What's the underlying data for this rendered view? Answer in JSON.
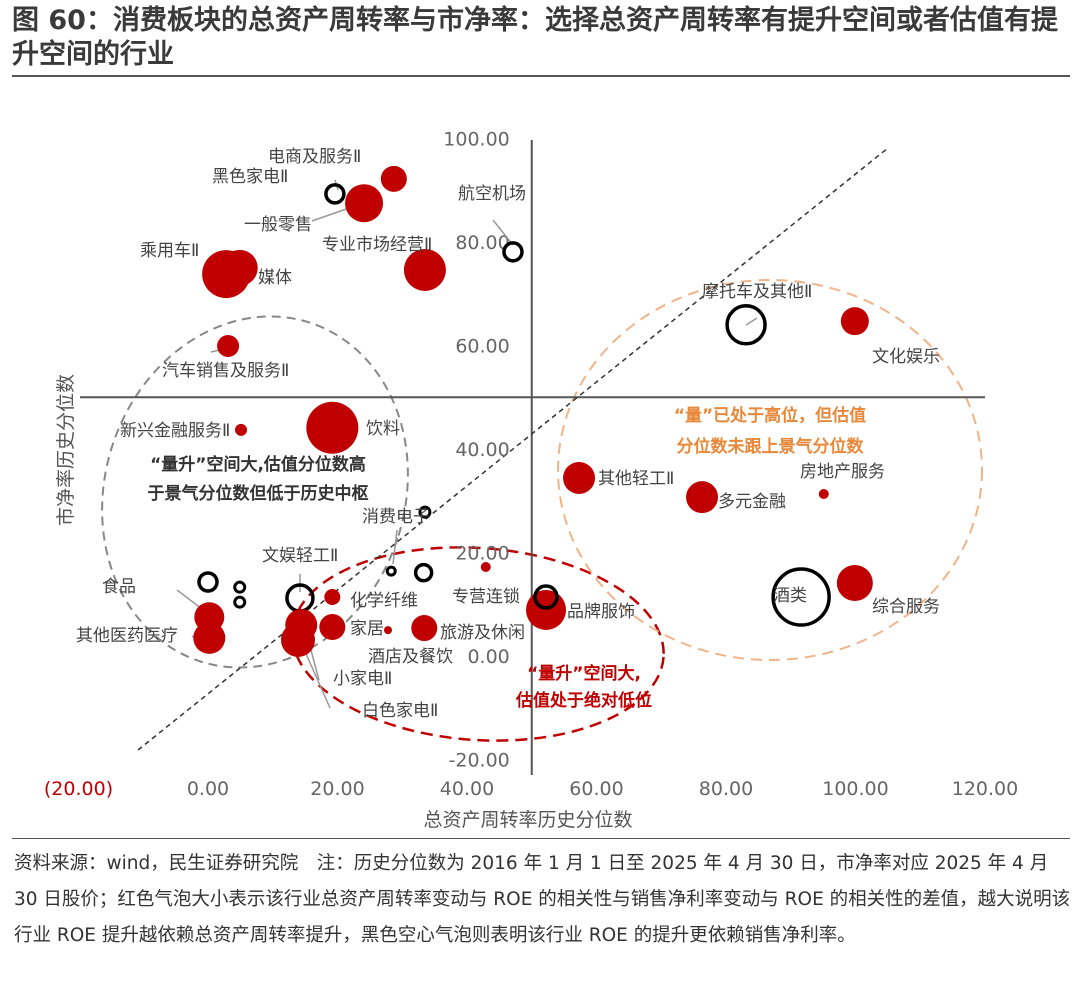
{
  "title": "图 60：消费板块的总资产周转率与市净率：选择总资产周转率有提升空间或者估值有提升空间的行业",
  "footer": "资料来源：wind，民生证券研究院　注：历史分位数为 2016 年 1 月 1 日至 2025 年 4 月 30 日，市净率对应 2025 年 4 月 30 日股价；红色气泡大小表示该行业总资产周转率变动与 ROE 的相关性与销售净利率变动与 ROE 的相关性的差值，越大说明该行业 ROE 提升越依赖总资产周转率提升，黑色空心气泡则表明该行业 ROE 的提升更依赖销售净利率。",
  "chart_data": {
    "type": "bubble",
    "xlabel": "总资产周转率历史分位数",
    "ylabel": "市净率历史分位数",
    "xlim": [
      -20,
      120
    ],
    "ylim": [
      -20,
      100
    ],
    "x_ticks": [
      "(20.00)",
      "0.00",
      "20.00",
      "40.00",
      "60.00",
      "80.00",
      "100.00",
      "120.00"
    ],
    "y_ticks": [
      "100.00",
      "80.00",
      "60.00",
      "40.00",
      "20.00",
      "0.00",
      "-20.00"
    ],
    "crosshair": {
      "x": 50,
      "y": 50
    },
    "colors": {
      "red": "#c00000",
      "hollow": "#000000",
      "negative_tick": "#c00000",
      "orange_note": "#e8883a",
      "red_note": "#c00000"
    },
    "legend": "none",
    "points": [
      {
        "label": "电商及服务Ⅱ",
        "x": 28.7,
        "y": 92.2,
        "kind": "red",
        "size": 13
      },
      {
        "label": "黑色家电Ⅱ",
        "x": 19.6,
        "y": 89.3,
        "kind": "hollow",
        "size": 9
      },
      {
        "label": "一般零售",
        "x": 24.1,
        "y": 87.5,
        "kind": "red",
        "size": 19
      },
      {
        "label": "专业市场经营Ⅱ",
        "x": 33.5,
        "y": 74.6,
        "kind": "red",
        "size": 21
      },
      {
        "label": "航空机场",
        "x": 47.1,
        "y": 78.1,
        "kind": "hollow",
        "size": 9
      },
      {
        "label": "乘用车Ⅱ",
        "x": 2.8,
        "y": 73.8,
        "kind": "red",
        "size": 24
      },
      {
        "label": "媒体",
        "x": 4.9,
        "y": 75.0,
        "kind": "red",
        "size": 18
      },
      {
        "label": "汽车销售及服务Ⅱ",
        "x": 3.1,
        "y": 59.9,
        "kind": "red",
        "size": 11
      },
      {
        "label": "摩托车及其他Ⅱ",
        "x": 83.1,
        "y": 64.0,
        "kind": "hollow",
        "size": 19
      },
      {
        "label": "文化娱乐",
        "x": 99.9,
        "y": 64.7,
        "kind": "red",
        "size": 14
      },
      {
        "label": "饮料",
        "x": 19.2,
        "y": 44.1,
        "kind": "red",
        "size": 26
      },
      {
        "label": "新兴金融服务Ⅱ",
        "x": 5.1,
        "y": 43.7,
        "kind": "red",
        "size": 6
      },
      {
        "label": "其他轻工Ⅱ",
        "x": 57.3,
        "y": 34.4,
        "kind": "red",
        "size": 16
      },
      {
        "label": "多元金融",
        "x": 76.3,
        "y": 30.7,
        "kind": "red",
        "size": 16
      },
      {
        "label": "房地产服务",
        "x": 95.1,
        "y": 31.3,
        "kind": "red",
        "size": 5
      },
      {
        "label": "",
        "x": 33.5,
        "y": 27.8,
        "kind": "hollow",
        "size": 5
      },
      {
        "label": "酒类",
        "x": 91.6,
        "y": 11.4,
        "kind": "hollow",
        "size": 28
      },
      {
        "label": "综合服务",
        "x": 99.9,
        "y": 14.1,
        "kind": "red",
        "size": 18
      },
      {
        "label": "品牌服饰",
        "x": 52.2,
        "y": 8.9,
        "kind": "red",
        "size": 20
      },
      {
        "label": "",
        "x": 52.2,
        "y": 11.4,
        "kind": "hollow",
        "size": 11
      },
      {
        "label": "",
        "x": 0.0,
        "y": 14.3,
        "kind": "hollow",
        "size": 9
      },
      {
        "label": "",
        "x": 4.9,
        "y": 13.3,
        "kind": "hollow",
        "size": 5
      },
      {
        "label": "",
        "x": 4.9,
        "y": 10.4,
        "kind": "hollow",
        "size": 5
      },
      {
        "label": "食品",
        "x": 0.2,
        "y": 7.5,
        "kind": "red",
        "size": 15
      },
      {
        "label": "其他医药医疗",
        "x": 0.2,
        "y": 3.5,
        "kind": "red",
        "size": 16
      },
      {
        "label": "文娱轻工Ⅱ",
        "x": 14.2,
        "y": 11.2,
        "kind": "hollow",
        "size": 13
      },
      {
        "label": "化学纤维",
        "x": 19.2,
        "y": 11.4,
        "kind": "red",
        "size": 8
      },
      {
        "label": "小家电Ⅱ",
        "x": 14.4,
        "y": 6.0,
        "kind": "red",
        "size": 16
      },
      {
        "label": "白色家电Ⅱ",
        "x": 13.9,
        "y": 3.1,
        "kind": "red",
        "size": 17
      },
      {
        "label": "家居",
        "x": 19.2,
        "y": 5.6,
        "kind": "red",
        "size": 13
      },
      {
        "label": "酒店及餐饮",
        "x": 27.8,
        "y": 5.0,
        "kind": "red",
        "size": 4
      },
      {
        "label": "旅游及休闲",
        "x": 33.4,
        "y": 5.4,
        "kind": "red",
        "size": 13
      },
      {
        "label": "消费电子",
        "x": 28.3,
        "y": 16.4,
        "kind": "hollow",
        "size": 4
      },
      {
        "label": "",
        "x": 33.3,
        "y": 16.1,
        "kind": "hollow",
        "size": 8
      },
      {
        "label": "专营连锁",
        "x": 42.9,
        "y": 17.2,
        "kind": "red",
        "size": 5
      }
    ],
    "annotations": {
      "gray_zone": [
        "“量升”空间大,估值分位数高",
        "于景气分位数但低于历史中枢"
      ],
      "red_zone": [
        "“量升”空间大,",
        "估值处于绝对低位"
      ],
      "orange_zone": [
        "“量”已处于高位，但估值",
        "分位数未跟上景气分位数"
      ]
    }
  }
}
